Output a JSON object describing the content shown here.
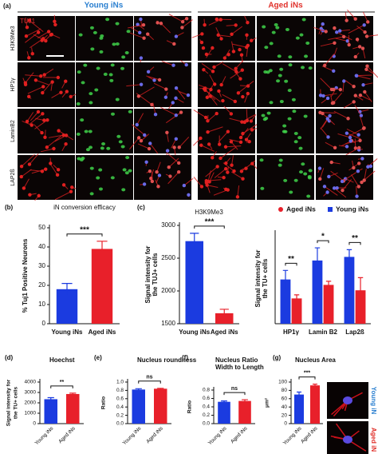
{
  "figure_a": {
    "panel": "(a)",
    "columns": [
      "Young iNs",
      "Aged iNs"
    ],
    "rows": [
      "H3K9Me3",
      "HP1γ",
      "LaminB2",
      "LAP2ß"
    ],
    "stain": "TUJ1"
  },
  "figure_g_images": [
    "Young iN",
    "Aged iN"
  ],
  "chart_data": [
    {
      "type": "bar",
      "panel": "(b)",
      "title": [
        "iN conversion efficacy"
      ],
      "ylabel": [
        "% Tuj1 Positive Neurons"
      ],
      "categories": [
        "Young iNs",
        "Aged iNs"
      ],
      "values": [
        18,
        39
      ],
      "errors": [
        3,
        4
      ],
      "colors": [
        "#1b3be0",
        "#e8202a"
      ],
      "ylim": [
        0,
        50
      ],
      "yticks": [
        0,
        10,
        20,
        30,
        40,
        50
      ],
      "significance": [
        "***"
      ]
    },
    {
      "type": "bar",
      "panel": "(c)",
      "title": [
        "H3K9Me3"
      ],
      "ylabel": [
        "Signal intensity for",
        "the TUJ+ cells"
      ],
      "categories": [
        "Young iNs",
        "Aged iNs"
      ],
      "values": [
        2760,
        1660
      ],
      "errors": [
        120,
        60
      ],
      "colors": [
        "#1b3be0",
        "#e8202a"
      ],
      "ylim": [
        1500,
        3000
      ],
      "yticks": [
        1500,
        2000,
        2500,
        3000
      ],
      "significance": [
        "***"
      ]
    },
    {
      "type": "grouped_bar",
      "ylabel": [
        "Signal intensity for",
        "the TU+ cells"
      ],
      "categories": [
        "HP1γ",
        "Lamin B2",
        "Lap2ß"
      ],
      "series": [
        {
          "name": "Young iNs",
          "color": "#1b3be0",
          "values": [
            109,
            130,
            134
          ],
          "errors": [
            10,
            14,
            8
          ]
        },
        {
          "name": "Aged iNs",
          "color": "#e8202a",
          "values": [
            88,
            103,
            97
          ],
          "errors": [
            4,
            4,
            14
          ]
        }
      ],
      "ylim": [
        60,
        160
      ],
      "significance": [
        "**",
        "*",
        "**"
      ]
    },
    {
      "type": "bar",
      "panel": "(d)",
      "title": [
        "Hoechst"
      ],
      "ylabel": [
        "Signal intensity for",
        "the TU+ cells"
      ],
      "categories": [
        "Young iNs",
        "Aged iNs"
      ],
      "values": [
        2350,
        2850
      ],
      "errors": [
        150,
        80
      ],
      "colors": [
        "#1b3be0",
        "#e8202a"
      ],
      "ylim": [
        0,
        4000
      ],
      "yticks": [
        0,
        1000,
        2000,
        3000,
        4000
      ],
      "significance": [
        "**"
      ],
      "rotate_labels": true
    },
    {
      "type": "bar",
      "panel": "(e)",
      "title": [
        "Nucleus roundness"
      ],
      "ylabel": [
        "Ratio"
      ],
      "categories": [
        "Young iNs",
        "Aged iNs"
      ],
      "values": [
        0.82,
        0.84
      ],
      "errors": [
        0.02,
        0.01
      ],
      "colors": [
        "#1b3be0",
        "#e8202a"
      ],
      "ylim": [
        0,
        1
      ],
      "yticks": [
        {
          "value": 0,
          "label": "0.0"
        },
        0.2,
        0.4,
        0.6,
        0.8,
        {
          "value": 1,
          "label": "1.0"
        }
      ],
      "significance": [
        "ns"
      ],
      "rotate_labels": true
    },
    {
      "type": "bar",
      "panel": "(f)",
      "title": [
        "Nucleus Ratio",
        "Width to Length"
      ],
      "ylabel": [
        "Ratio"
      ],
      "categories": [
        "Young iNs",
        "Aged iNs"
      ],
      "values": [
        0.52,
        0.54
      ],
      "errors": [
        0.02,
        0.03
      ],
      "colors": [
        "#1b3be0",
        "#e8202a"
      ],
      "ylim": [
        0,
        0.8
      ],
      "yticks": [
        {
          "value": 0,
          "label": "0.0"
        },
        0.2,
        0.4,
        0.6,
        0.8
      ],
      "significance": [
        "ns"
      ],
      "rotate_labels": true
    },
    {
      "type": "bar",
      "panel": "(g)",
      "title": [
        "Nucleus Area"
      ],
      "ylabel": [
        "μm²"
      ],
      "categories": [
        "Young iNs",
        "Aged iNs"
      ],
      "values": [
        70,
        92
      ],
      "errors": [
        6,
        3
      ],
      "colors": [
        "#1b3be0",
        "#e8202a"
      ],
      "ylim": [
        0,
        100
      ],
      "yticks": [
        0,
        20,
        40,
        60,
        80,
        100
      ],
      "significance": [
        "***"
      ],
      "rotate_labels": true
    }
  ]
}
